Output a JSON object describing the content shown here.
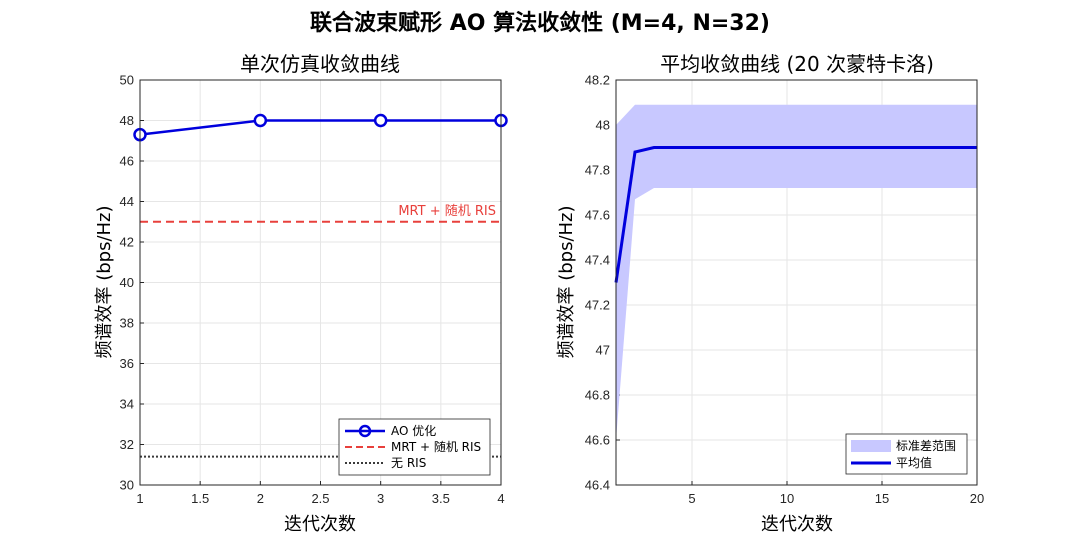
{
  "suptitle": "联合波束赋形 AO 算法收敛性 (M=4, N=32)",
  "chart_data": [
    {
      "type": "line",
      "title": "单次仿真收敛曲线",
      "xlabel": "迭代次数",
      "ylabel": "频谱效率 (bps/Hz)",
      "xlim": [
        1,
        4
      ],
      "ylim": [
        30,
        50
      ],
      "x_ticks": [
        "1",
        "1.5",
        "2",
        "2.5",
        "3",
        "3.5",
        "4"
      ],
      "y_ticks": [
        "30",
        "32",
        "34",
        "36",
        "38",
        "40",
        "42",
        "44",
        "46",
        "48",
        "50"
      ],
      "grid": true,
      "series": [
        {
          "name": "AO 优化",
          "x": [
            1,
            2,
            3,
            4
          ],
          "y": [
            47.3,
            48.0,
            48.0,
            48.0
          ],
          "color": "#0000dd",
          "style": "solid-circle"
        },
        {
          "name": "MRT + 随机 RIS",
          "y_const": 43.0,
          "color": "#e8403c",
          "style": "dashed"
        },
        {
          "name": "无 RIS",
          "y_const": 31.4,
          "color": "#3a3a3a",
          "style": "dotted"
        }
      ],
      "annotation": "MRT + 随机 RIS",
      "legend_position": "bottom-right"
    },
    {
      "type": "area",
      "title": "平均收敛曲线 (20 次蒙特卡洛)",
      "xlabel": "迭代次数",
      "ylabel": "频谱效率 (bps/Hz)",
      "xlim": [
        1,
        20
      ],
      "ylim": [
        46.4,
        48.2
      ],
      "x_ticks": [
        "5",
        "10",
        "15",
        "20"
      ],
      "y_ticks": [
        "46.4",
        "46.6",
        "46.8",
        "47",
        "47.2",
        "47.4",
        "47.6",
        "47.8",
        "48",
        "48.2"
      ],
      "grid": true,
      "x": [
        1,
        2,
        3,
        4,
        5,
        6,
        7,
        8,
        9,
        10,
        11,
        12,
        13,
        14,
        15,
        16,
        17,
        18,
        19,
        20
      ],
      "series": [
        {
          "name": "标准差范围",
          "upper": [
            48.0,
            48.09,
            48.09,
            48.09,
            48.09,
            48.09,
            48.09,
            48.09,
            48.09,
            48.09,
            48.09,
            48.09,
            48.09,
            48.09,
            48.09,
            48.09,
            48.09,
            48.09,
            48.09,
            48.09
          ],
          "lower": [
            46.6,
            47.67,
            47.72,
            47.72,
            47.72,
            47.72,
            47.72,
            47.72,
            47.72,
            47.72,
            47.72,
            47.72,
            47.72,
            47.72,
            47.72,
            47.72,
            47.72,
            47.72,
            47.72,
            47.72
          ],
          "color": "#c8c8ff"
        },
        {
          "name": "平均值",
          "values": [
            47.3,
            47.88,
            47.9,
            47.9,
            47.9,
            47.9,
            47.9,
            47.9,
            47.9,
            47.9,
            47.9,
            47.9,
            47.9,
            47.9,
            47.9,
            47.9,
            47.9,
            47.9,
            47.9,
            47.9
          ],
          "color": "#0000dd"
        }
      ],
      "legend_position": "bottom-right"
    }
  ]
}
